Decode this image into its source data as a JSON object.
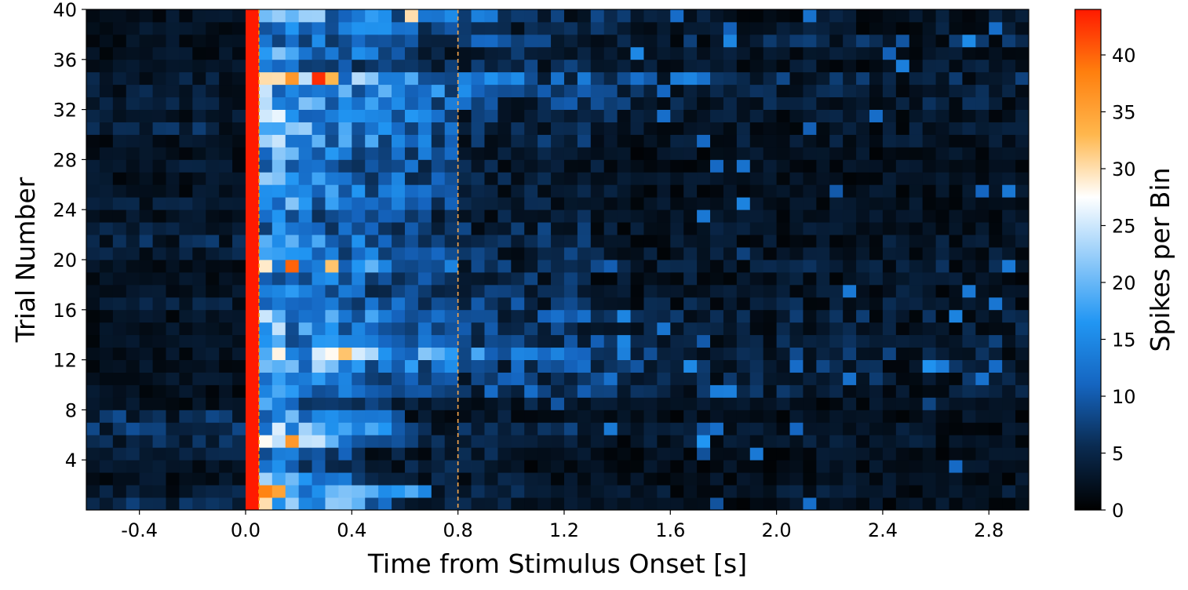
{
  "chart_data": {
    "type": "heatmap",
    "title": "",
    "xlabel": "Time from Stimulus Onset [s]",
    "ylabel": "Trial Number",
    "colorbar_label": "Spikes per Bin",
    "xlim": [
      -0.6,
      2.95
    ],
    "ylim": [
      0,
      40
    ],
    "bin_width_s": 0.05,
    "n_trials": 40,
    "x_ticks": [
      -0.4,
      0.0,
      0.4,
      0.8,
      1.2,
      1.6,
      2.0,
      2.4,
      2.8
    ],
    "x_tick_labels": [
      "-0.4",
      "0.0",
      "0.4",
      "0.8",
      "1.2",
      "1.6",
      "2.0",
      "2.4",
      "2.8"
    ],
    "y_ticks": [
      4,
      8,
      12,
      16,
      20,
      24,
      28,
      32,
      36,
      40
    ],
    "y_tick_labels": [
      "4",
      "8",
      "12",
      "16",
      "20",
      "24",
      "28",
      "32",
      "36",
      "40"
    ],
    "colorbar_range": [
      0,
      44
    ],
    "colorbar_ticks": [
      0,
      5,
      10,
      15,
      20,
      25,
      30,
      35,
      40
    ],
    "colorbar_tick_labels": [
      "0",
      "5",
      "10",
      "15",
      "20",
      "25",
      "30",
      "35",
      "40"
    ],
    "colormap": [
      "#000000",
      "#0a2a4f",
      "#1565c0",
      "#2196f3",
      "#90caf9",
      "#ffffff",
      "#ffb74d",
      "#ff7f0e",
      "#ff1a00"
    ],
    "stimulus_artifact": {
      "x_start": 0.0,
      "x_end": 0.05,
      "value": 44,
      "color": "#ff1a00"
    },
    "reference_lines": [
      {
        "x": 0.05,
        "color": "#ff8c00",
        "style": "dashed"
      },
      {
        "x": 0.8,
        "color": "#ffa94d",
        "style": "dashed"
      }
    ],
    "grid": false,
    "notable_cells": [
      {
        "trial": 35,
        "t": 0.25,
        "value": 43
      },
      {
        "trial": 35,
        "t": 0.3,
        "value": 33
      },
      {
        "trial": 35,
        "t": 0.15,
        "value": 36
      },
      {
        "trial": 20,
        "t": 0.15,
        "value": 40
      },
      {
        "trial": 20,
        "t": 0.3,
        "value": 32
      },
      {
        "trial": 6,
        "t": 0.15,
        "value": 36
      },
      {
        "trial": 2,
        "t": 0.05,
        "value": 38
      },
      {
        "trial": 2,
        "t": 0.1,
        "value": 35
      },
      {
        "trial": 13,
        "t": 0.35,
        "value": 32
      },
      {
        "trial": 40,
        "t": 0.6,
        "value": 30
      }
    ],
    "trials": {
      "1": {
        "base": 4,
        "resp": 26,
        "dur": 0.55,
        "tail": 3
      },
      "2": {
        "base": 3,
        "resp": 27,
        "dur": 0.7,
        "tail": 4
      },
      "3": {
        "base": 2,
        "resp": 18,
        "dur": 0.45,
        "tail": 3
      },
      "4": {
        "base": 2,
        "resp": 14,
        "dur": 0.4,
        "tail": 3
      },
      "5": {
        "base": 3,
        "resp": 15,
        "dur": 0.45,
        "tail": 3
      },
      "6": {
        "base": 4,
        "resp": 23,
        "dur": 0.6,
        "tail": 4
      },
      "7": {
        "base": 5,
        "resp": 21,
        "dur": 0.7,
        "tail": 4
      },
      "8": {
        "base": 5,
        "resp": 19,
        "dur": 0.6,
        "tail": 3
      },
      "9": {
        "base": 2,
        "resp": 15,
        "dur": 0.55,
        "tail": 3
      },
      "10": {
        "base": 2,
        "resp": 15,
        "dur": 0.8,
        "tail": 6
      },
      "11": {
        "base": 2,
        "resp": 16,
        "dur": 0.8,
        "tail": 6
      },
      "12": {
        "base": 2,
        "resp": 21,
        "dur": 0.9,
        "tail": 6
      },
      "13": {
        "base": 2,
        "resp": 25,
        "dur": 1.0,
        "tail": 7
      },
      "14": {
        "base": 2,
        "resp": 18,
        "dur": 0.8,
        "tail": 5
      },
      "15": {
        "base": 2,
        "resp": 19,
        "dur": 0.8,
        "tail": 5
      },
      "16": {
        "base": 2,
        "resp": 19,
        "dur": 0.8,
        "tail": 6
      },
      "17": {
        "base": 3,
        "resp": 15,
        "dur": 0.8,
        "tail": 5
      },
      "18": {
        "base": 2,
        "resp": 14,
        "dur": 0.7,
        "tail": 4
      },
      "19": {
        "base": 2,
        "resp": 15,
        "dur": 0.7,
        "tail": 4
      },
      "20": {
        "base": 2,
        "resp": 23,
        "dur": 0.8,
        "tail": 5
      },
      "21": {
        "base": 3,
        "resp": 16,
        "dur": 0.8,
        "tail": 4
      },
      "22": {
        "base": 4,
        "resp": 17,
        "dur": 0.7,
        "tail": 4
      },
      "23": {
        "base": 3,
        "resp": 14,
        "dur": 0.7,
        "tail": 4
      },
      "24": {
        "base": 2,
        "resp": 13,
        "dur": 0.7,
        "tail": 3
      },
      "25": {
        "base": 3,
        "resp": 18,
        "dur": 0.8,
        "tail": 3
      },
      "26": {
        "base": 2,
        "resp": 18,
        "dur": 0.8,
        "tail": 3
      },
      "27": {
        "base": 2,
        "resp": 17,
        "dur": 0.8,
        "tail": 3
      },
      "28": {
        "base": 3,
        "resp": 16,
        "dur": 0.8,
        "tail": 3
      },
      "29": {
        "base": 2,
        "resp": 18,
        "dur": 0.8,
        "tail": 3
      },
      "30": {
        "base": 2,
        "resp": 20,
        "dur": 0.8,
        "tail": 4
      },
      "31": {
        "base": 4,
        "resp": 19,
        "dur": 0.8,
        "tail": 4
      },
      "32": {
        "base": 3,
        "resp": 21,
        "dur": 0.8,
        "tail": 4
      },
      "33": {
        "base": 3,
        "resp": 21,
        "dur": 0.9,
        "tail": 5
      },
      "34": {
        "base": 3,
        "resp": 22,
        "dur": 0.9,
        "tail": 5
      },
      "35": {
        "base": 3,
        "resp": 24,
        "dur": 1.1,
        "tail": 7
      },
      "36": {
        "base": 2,
        "resp": 13,
        "dur": 0.7,
        "tail": 4
      },
      "37": {
        "base": 2,
        "resp": 18,
        "dur": 0.6,
        "tail": 4
      },
      "38": {
        "base": 2,
        "resp": 14,
        "dur": 0.7,
        "tail": 6
      },
      "39": {
        "base": 2,
        "resp": 18,
        "dur": 0.8,
        "tail": 4
      },
      "40": {
        "base": 2,
        "resp": 20,
        "dur": 1.0,
        "tail": 4
      }
    }
  }
}
